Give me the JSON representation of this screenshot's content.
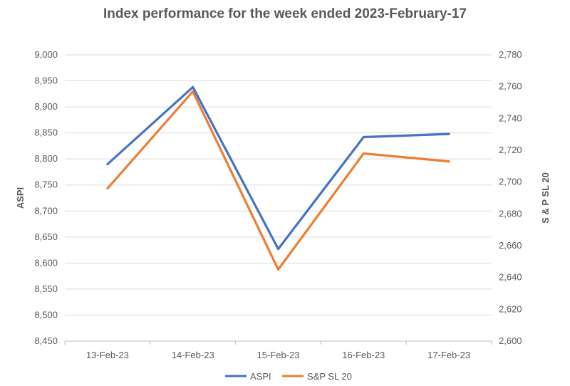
{
  "chart_data": {
    "type": "line",
    "title": "Index performance for the week ended 2023-February-17",
    "categories": [
      "13-Feb-23",
      "14-Feb-23",
      "15-Feb-23",
      "16-Feb-23",
      "17-Feb-23"
    ],
    "series": [
      {
        "name": "ASPI",
        "axis": "left",
        "color": "#4472C4",
        "values": [
          8790,
          8938,
          8627,
          8842,
          8848
        ]
      },
      {
        "name": "S&P SL 20",
        "axis": "right",
        "color": "#ED7D31",
        "values": [
          2696,
          2757,
          2645,
          2718,
          2713
        ]
      }
    ],
    "ylabel": "ASPI",
    "ylabel_right": "S & P SL 20",
    "ylim": [
      8450,
      9000
    ],
    "ylim_right": [
      2600,
      2780
    ],
    "yticks": [
      "8,450",
      "8,500",
      "8,550",
      "8,600",
      "8,650",
      "8,700",
      "8,750",
      "8,800",
      "8,850",
      "8,900",
      "8,950",
      "9,000"
    ],
    "yticks_right": [
      "2,600",
      "2,620",
      "2,640",
      "2,660",
      "2,680",
      "2,700",
      "2,720",
      "2,740",
      "2,760",
      "2,780"
    ],
    "grid": true,
    "legend": "bottom"
  }
}
